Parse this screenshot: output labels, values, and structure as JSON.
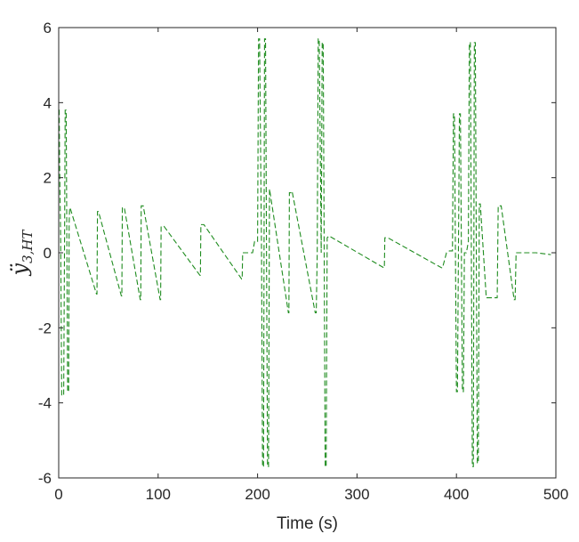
{
  "chart_data": {
    "type": "line",
    "title": "",
    "xlabel": "Time (s)",
    "ylabel": "ÿ",
    "ylabel_subscript": "3,HT",
    "xlim": [
      0,
      500
    ],
    "ylim": [
      -6,
      6
    ],
    "xticks": [
      0,
      100,
      200,
      300,
      400,
      500
    ],
    "yticks": [
      -6,
      -4,
      -2,
      0,
      2,
      4,
      6
    ],
    "xtick_labels": [
      "0",
      "100",
      "200",
      "300",
      "400",
      "500"
    ],
    "ytick_labels": [
      "-6",
      "-4",
      "-2",
      "0",
      "2",
      "4",
      "6"
    ],
    "grid": false,
    "box": true,
    "series": [
      {
        "color": "#1f8c1f",
        "style": "dashed",
        "x": [
          0,
          0.5,
          1,
          2,
          3,
          5,
          6,
          6.5,
          7.5,
          9,
          10,
          10.5,
          11,
          12,
          38,
          38.5,
          39,
          40,
          63,
          63.5,
          64,
          66,
          82,
          82.5,
          83,
          85,
          102,
          102.5,
          103,
          106,
          142,
          142.5,
          143,
          146,
          184,
          184.5,
          185,
          187,
          195,
          197,
          200,
          201,
          202,
          204,
          205,
          206,
          207,
          208,
          209,
          210,
          211,
          212,
          231,
          231.5,
          232,
          234,
          233,
          235,
          258,
          259,
          260,
          261,
          262,
          264,
          265,
          266,
          267,
          268,
          269,
          270,
          272,
          275,
          327,
          327.5,
          328,
          331,
          385,
          386,
          390,
          393,
          396,
          397,
          398,
          399,
          400,
          401,
          403,
          404,
          405,
          406,
          407,
          408,
          410,
          412,
          413,
          414,
          415,
          416,
          417,
          418,
          419,
          420,
          421,
          422,
          423,
          424,
          430,
          441,
          442,
          443,
          445,
          458,
          459,
          460,
          461,
          466,
          480,
          495
        ],
        "y": [
          3.8,
          3.8,
          2.2,
          0.3,
          -3.8,
          -3.8,
          0.9,
          3.8,
          3.8,
          -3.7,
          -3.7,
          0.8,
          1.2,
          1.15,
          -1.1,
          -1.1,
          1.1,
          1.1,
          -1.15,
          -1.15,
          1.2,
          1.2,
          -1.25,
          -1.25,
          1.25,
          1.25,
          -1.25,
          -1.25,
          0.7,
          0.7,
          -0.6,
          -0.6,
          0.75,
          0.75,
          -0.7,
          -0.7,
          0.0,
          0.0,
          0.0,
          0.3,
          0.3,
          5.7,
          5.7,
          0.0,
          -5.7,
          -5.7,
          5.7,
          5.7,
          0.0,
          -5.7,
          -5.7,
          1.7,
          -1.6,
          -1.6,
          1.6,
          1.6,
          1.6,
          1.6,
          -1.6,
          -1.6,
          0.0,
          5.7,
          5.7,
          0.0,
          5.6,
          5.6,
          0.0,
          -5.7,
          -5.7,
          0.4,
          0.45,
          0.4,
          -0.4,
          -0.4,
          0.4,
          0.4,
          -0.4,
          -0.4,
          0.0,
          0.05,
          0.05,
          3.7,
          3.7,
          0.0,
          -3.7,
          -3.7,
          3.7,
          3.7,
          0.0,
          -3.7,
          -3.7,
          0.0,
          0.0,
          0.3,
          5.6,
          5.6,
          0.0,
          -5.7,
          -5.7,
          5.6,
          5.6,
          0.0,
          -5.6,
          -5.6,
          1.3,
          1.3,
          -1.2,
          -1.2,
          1.25,
          1.25,
          1.25,
          -1.25,
          -1.25,
          0.0,
          0.0,
          0.0,
          0.0,
          -0.05
        ]
      }
    ]
  }
}
